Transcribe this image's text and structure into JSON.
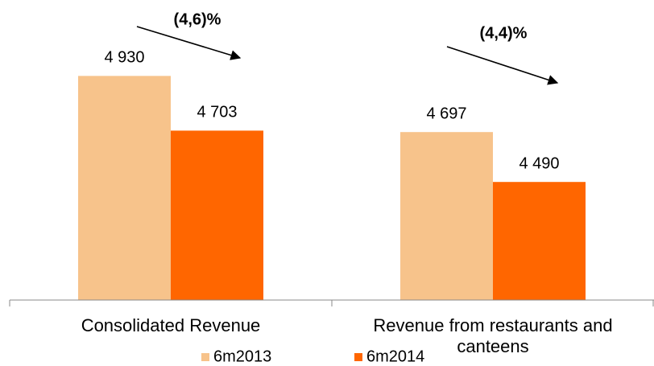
{
  "chart_data": {
    "type": "bar",
    "categories": [
      "Consolidated Revenue",
      "Revenue from restaurants and canteens"
    ],
    "series": [
      {
        "name": "6m2013",
        "color": "#f7c38b",
        "values": [
          4930,
          4697
        ],
        "value_labels": [
          "4 930",
          "4 697"
        ]
      },
      {
        "name": "6m2014",
        "color": "#ff6600",
        "values": [
          4703,
          4490
        ],
        "value_labels": [
          "4 703",
          "4 490"
        ]
      }
    ],
    "ylim": [
      4000,
      5200
    ],
    "annotations": [
      "(4,6)%",
      "(4,4)%"
    ],
    "legend": "bottom"
  }
}
